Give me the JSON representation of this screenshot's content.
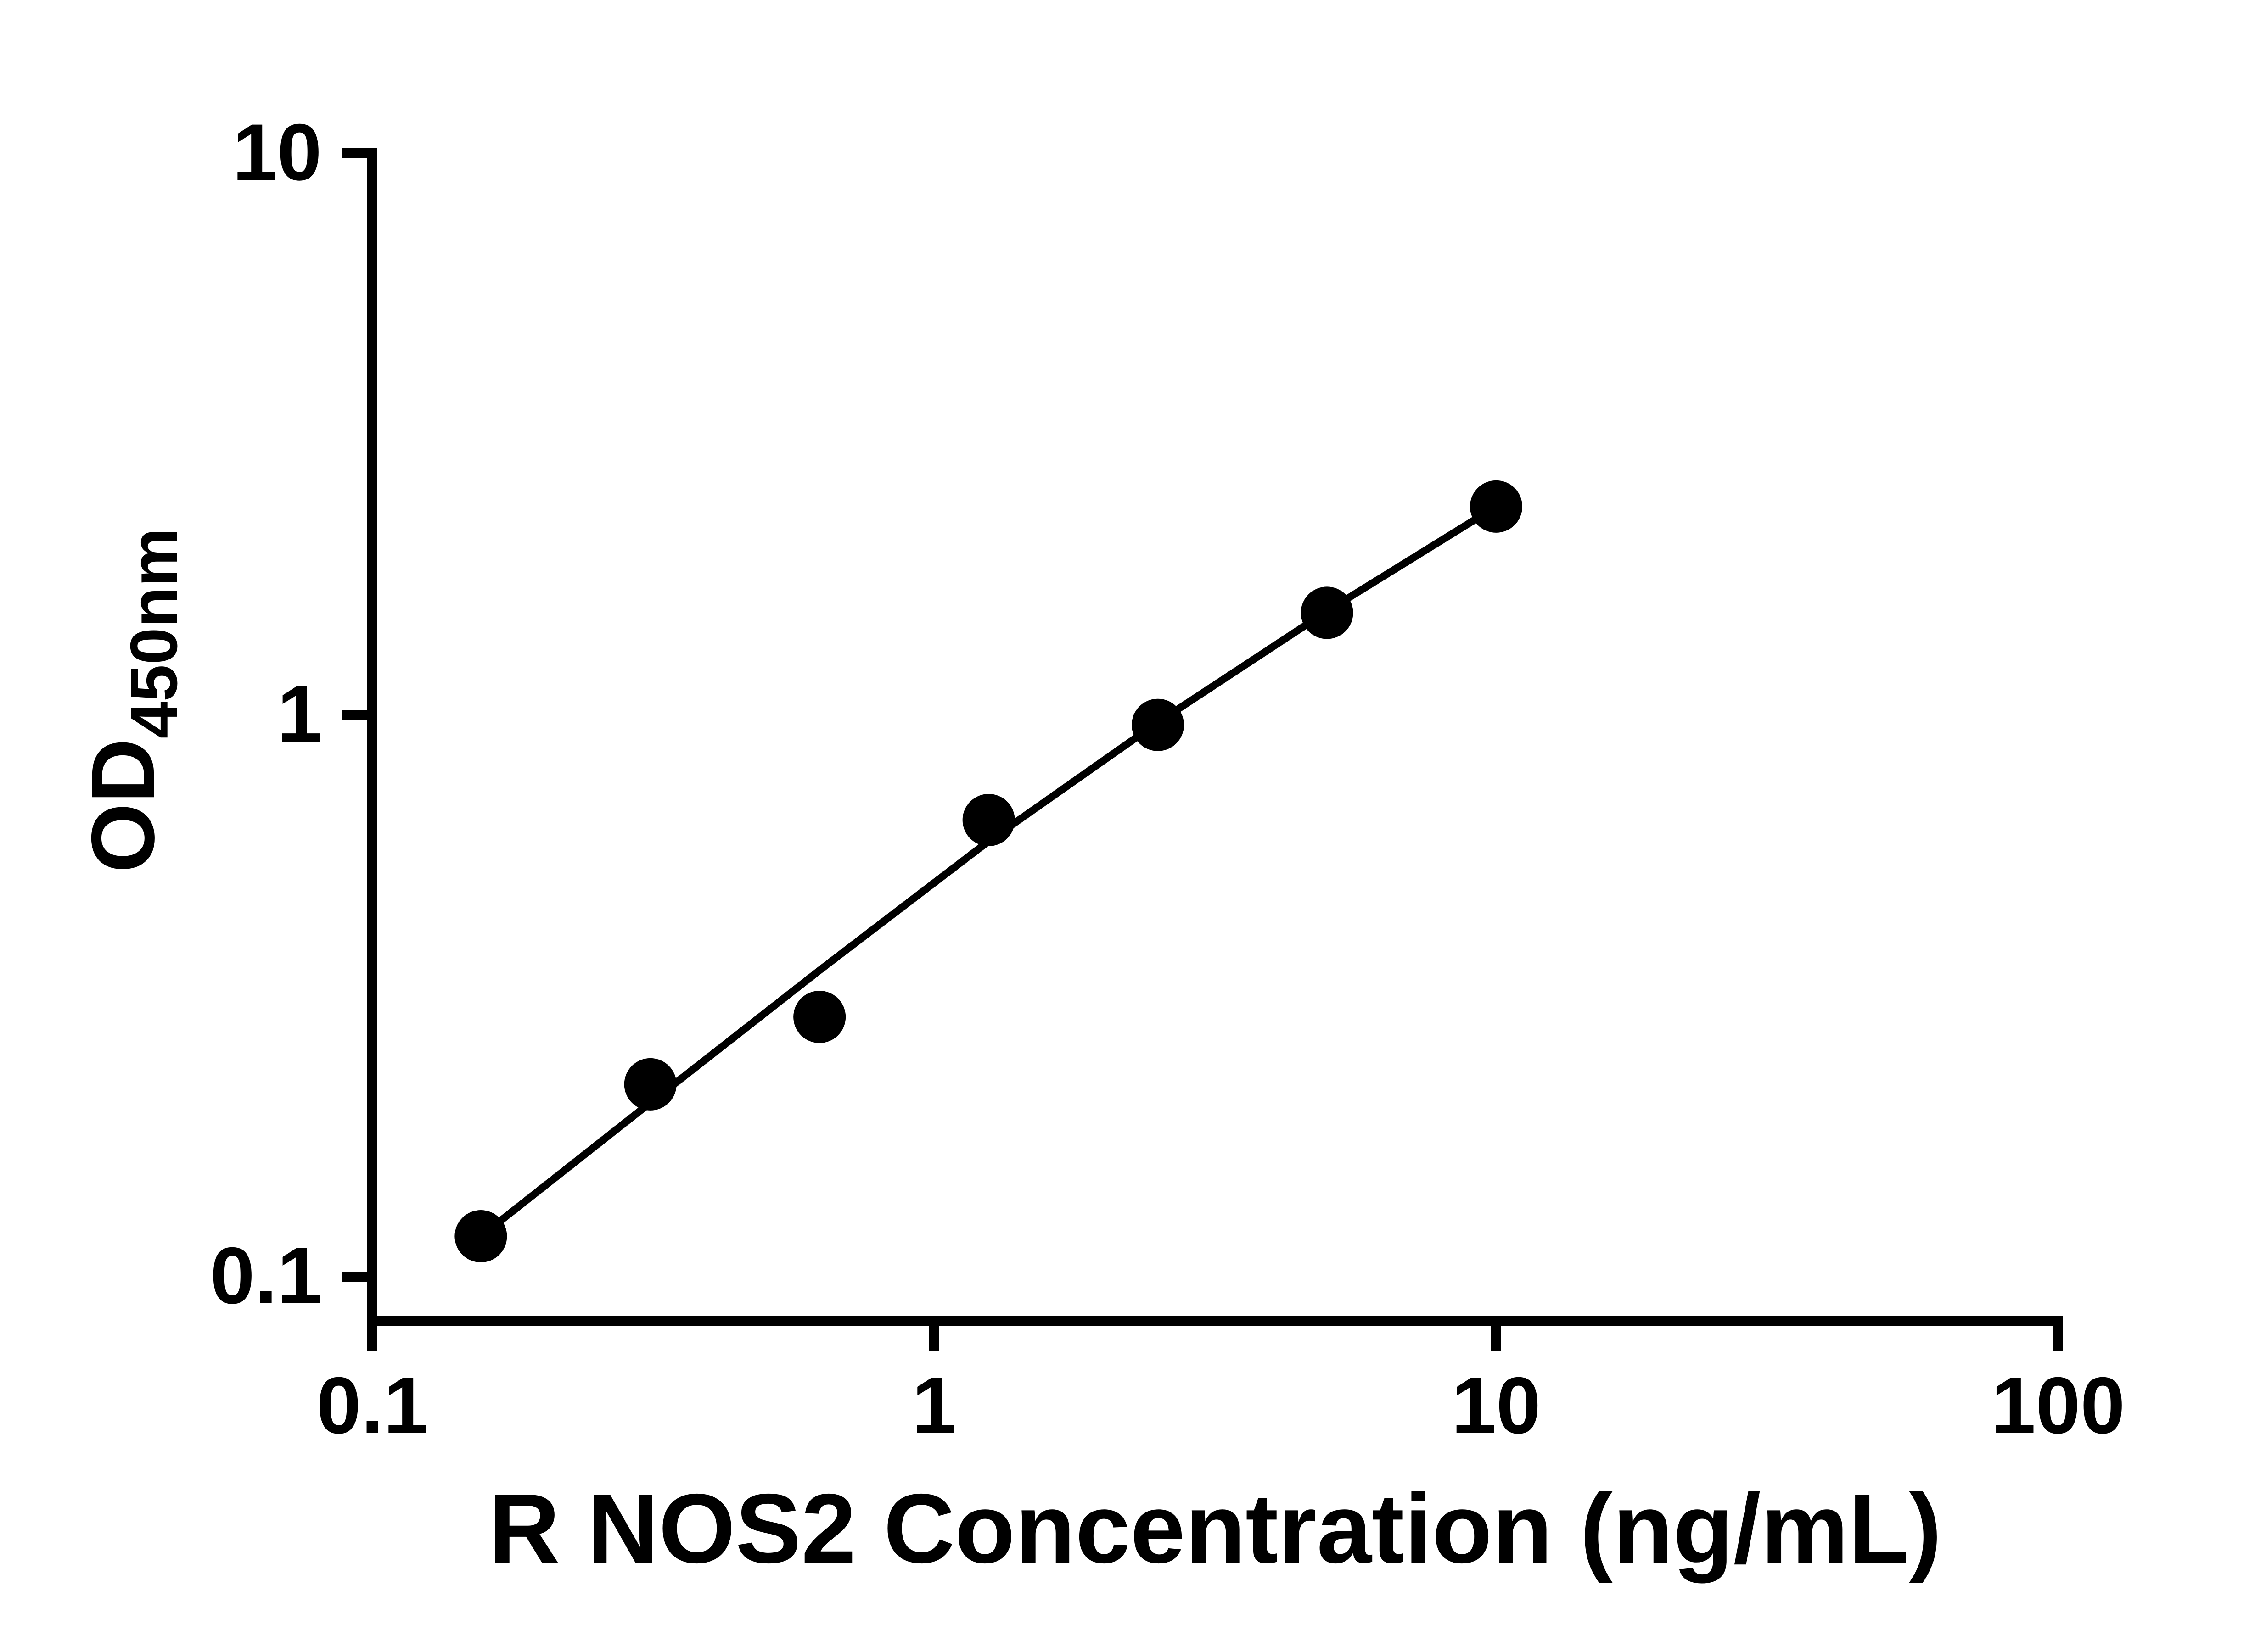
{
  "chart_data": {
    "type": "scatter",
    "title": "",
    "xlabel": "R NOS2 Concentration (ng/mL)",
    "ylabel_main": "OD",
    "ylabel_sub": "450nm",
    "x_scale": "log",
    "y_scale": "log",
    "xlim": [
      0.1,
      100
    ],
    "ylim": [
      0.1,
      10
    ],
    "grid": false,
    "legend": false,
    "x_ticks": [
      0.1,
      1,
      10,
      100
    ],
    "x_tick_labels": [
      "0.1",
      "1",
      "10",
      "100"
    ],
    "y_ticks": [
      10,
      1,
      0.1
    ],
    "y_tick_labels": [
      "10",
      "1",
      "0.1"
    ],
    "points": {
      "x": [
        0.156,
        0.3125,
        0.625,
        1.25,
        2.5,
        5,
        10
      ],
      "y": [
        0.118,
        0.22,
        0.29,
        0.65,
        0.96,
        1.52,
        2.35
      ]
    },
    "fit_line": {
      "x": [
        0.156,
        0.3125,
        0.625,
        1.25,
        2.5,
        5,
        10
      ],
      "y": [
        0.118,
        0.204,
        0.351,
        0.596,
        0.97,
        1.53,
        2.35
      ]
    },
    "colors": {
      "points": "#000000",
      "line": "#000000",
      "axis": "#000000",
      "background": "#ffffff"
    }
  }
}
